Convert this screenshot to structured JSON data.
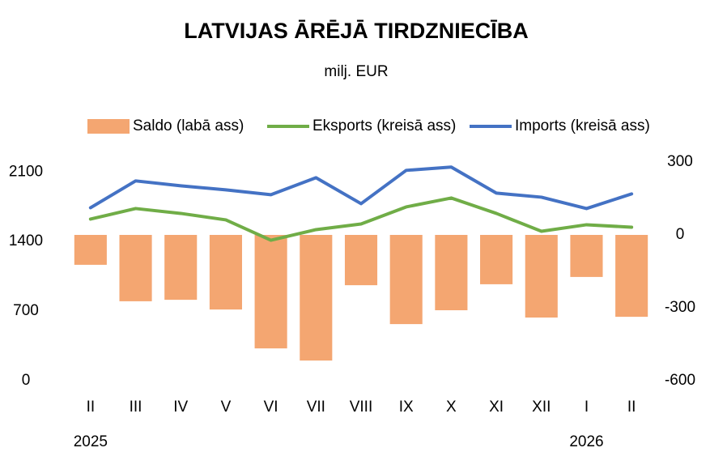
{
  "chart_data": {
    "type": "bar-line",
    "title": "LATVIJAS ĀRĒJĀ TIRDZNIECĪBA",
    "subtitle": "milj. EUR",
    "categories": [
      "II",
      "III",
      "IV",
      "V",
      "VI",
      "VII",
      "VIII",
      "IX",
      "X",
      "XI",
      "XII",
      "I",
      "II"
    ],
    "years": [
      "2025",
      null,
      null,
      null,
      null,
      null,
      null,
      null,
      null,
      null,
      null,
      "2026",
      null
    ],
    "series": [
      {
        "name": "Saldo (labā ass)",
        "type": "bar",
        "axis": "y2",
        "color": "#f4a671",
        "values": [
          -123,
          -273,
          -267,
          -307,
          -467,
          -517,
          -207,
          -367,
          -310,
          -203,
          -340,
          -173,
          -337
        ]
      },
      {
        "name": "Eksports (kreisā ass)",
        "type": "line",
        "color": "#70ad47",
        "values": [
          1626,
          1732,
          1683,
          1618,
          1413,
          1520,
          1577,
          1748,
          1838,
          1683,
          1503,
          1569,
          1544
        ]
      },
      {
        "name": "Imports (kreisā ass)",
        "type": "line",
        "color": "#4472c4",
        "values": [
          1740,
          2010,
          1961,
          1920,
          1871,
          2042,
          1781,
          2116,
          2149,
          1887,
          1846,
          1732,
          1879
        ]
      }
    ],
    "ylim": [
      0,
      2200
    ],
    "yticks": [
      0,
      700,
      1400,
      2100
    ],
    "y2lim": [
      -600,
      300
    ],
    "y2ticks": [
      -600,
      -300,
      0,
      300
    ],
    "legend": "top"
  }
}
